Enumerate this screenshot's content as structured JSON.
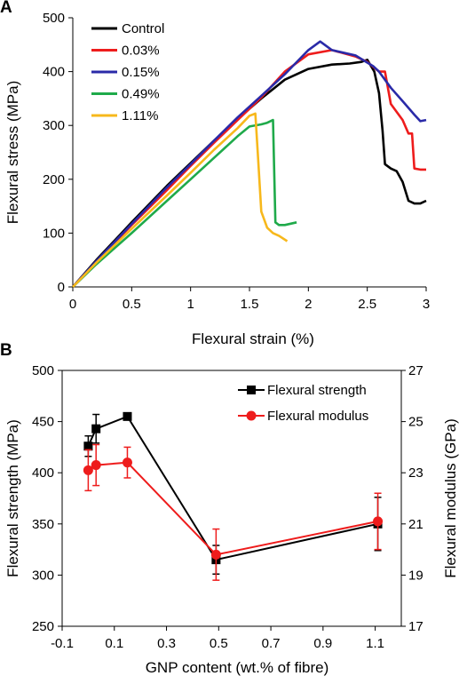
{
  "chart_data": [
    {
      "panel": "A",
      "type": "line",
      "xlabel": "Flexural strain (%)",
      "ylabel": "Flexural stress (MPa)",
      "xlim": [
        0,
        3
      ],
      "ylim": [
        0,
        500
      ],
      "xticks": [
        0,
        0.5,
        1,
        1.5,
        2,
        2.5,
        3
      ],
      "yticks": [
        0,
        100,
        200,
        300,
        400,
        500
      ],
      "xtick_labels": [
        "0",
        "0.5",
        "1",
        "1.5",
        "2",
        "2.5",
        "3"
      ],
      "ytick_labels": [
        "0",
        "100",
        "200",
        "300",
        "400",
        "500"
      ],
      "legend_position": "top-left",
      "grid": false,
      "series": [
        {
          "name": "Control",
          "color": "#000000",
          "x": [
            0,
            0.2,
            0.5,
            0.8,
            1.0,
            1.2,
            1.4,
            1.6,
            1.8,
            2.0,
            2.2,
            2.35,
            2.45,
            2.5,
            2.56,
            2.6,
            2.63,
            2.65,
            2.7,
            2.75,
            2.8,
            2.85,
            2.9,
            2.95,
            3.0
          ],
          "y": [
            0,
            50,
            120,
            188,
            230,
            272,
            312,
            350,
            385,
            405,
            413,
            415,
            418,
            422,
            400,
            360,
            290,
            228,
            220,
            215,
            195,
            160,
            155,
            155,
            160
          ]
        },
        {
          "name": "0.03%",
          "color": "#ee1c1c",
          "x": [
            0,
            0.2,
            0.5,
            0.8,
            1.0,
            1.2,
            1.4,
            1.6,
            1.8,
            2.0,
            2.2,
            2.4,
            2.5,
            2.6,
            2.65,
            2.7,
            2.75,
            2.8,
            2.85,
            2.88,
            2.9,
            2.95,
            3.0
          ],
          "y": [
            0,
            47,
            115,
            180,
            225,
            268,
            310,
            352,
            400,
            432,
            440,
            428,
            418,
            400,
            400,
            340,
            325,
            310,
            285,
            285,
            220,
            218,
            218
          ]
        },
        {
          "name": "0.15%",
          "color": "#2a2aa8",
          "x": [
            0,
            0.2,
            0.5,
            0.8,
            1.0,
            1.2,
            1.4,
            1.6,
            1.8,
            2.0,
            2.1,
            2.2,
            2.4,
            2.55,
            2.6,
            2.7,
            2.8,
            2.9,
            2.95,
            3.0
          ],
          "y": [
            0,
            48,
            117,
            185,
            228,
            272,
            315,
            355,
            395,
            440,
            456,
            440,
            430,
            410,
            400,
            370,
            345,
            320,
            308,
            310
          ]
        },
        {
          "name": "0.49%",
          "color": "#1faa4a",
          "x": [
            0,
            0.2,
            0.5,
            0.8,
            1.0,
            1.2,
            1.4,
            1.5,
            1.6,
            1.65,
            1.7,
            1.72,
            1.75,
            1.8,
            1.9
          ],
          "y": [
            0,
            42,
            100,
            160,
            200,
            240,
            280,
            298,
            302,
            305,
            310,
            120,
            115,
            115,
            120
          ]
        },
        {
          "name": "1.11%",
          "color": "#f7b81c",
          "x": [
            0,
            0.2,
            0.5,
            0.8,
            1.0,
            1.2,
            1.4,
            1.5,
            1.55,
            1.57,
            1.6,
            1.65,
            1.7,
            1.75,
            1.82
          ],
          "y": [
            0,
            45,
            108,
            170,
            212,
            255,
            295,
            318,
            322,
            250,
            140,
            110,
            100,
            95,
            85
          ]
        }
      ]
    },
    {
      "panel": "B",
      "type": "line",
      "xlabel": "GNP content (wt.% of fibre)",
      "ylabel": "Flexural strength (MPa)",
      "ylabel_right": "Flexural modulus (GPa)",
      "xlim": [
        -0.1,
        1.2
      ],
      "ylim": [
        250,
        500
      ],
      "ylim_right": [
        17,
        27
      ],
      "xticks": [
        -0.1,
        0.1,
        0.3,
        0.5,
        0.7,
        0.9,
        1.1
      ],
      "xtick_labels": [
        "-0.1",
        "0.1",
        "0.3",
        "0.5",
        "0.7",
        "0.9",
        "1.1"
      ],
      "yticks": [
        250,
        300,
        350,
        400,
        450,
        500
      ],
      "ytick_labels": [
        "250",
        "300",
        "350",
        "400",
        "450",
        "500"
      ],
      "yticks_right": [
        17,
        19,
        21,
        23,
        25,
        27
      ],
      "ytick_labels_right": [
        "17",
        "19",
        "21",
        "23",
        "25",
        "27"
      ],
      "legend_position": "top-right",
      "grid": false,
      "series": [
        {
          "name": "Flexural strength",
          "color": "#000000",
          "marker": "square",
          "axis": "left",
          "x": [
            0,
            0.03,
            0.15,
            0.49,
            1.11
          ],
          "y": [
            426,
            443,
            455,
            315,
            350
          ],
          "err": [
            10,
            14,
            0,
            14,
            26
          ]
        },
        {
          "name": "Flexural modulus",
          "color": "#ee1c1c",
          "marker": "circle",
          "axis": "right",
          "x": [
            0,
            0.03,
            0.15,
            0.49,
            1.11
          ],
          "y": [
            23.1,
            23.3,
            23.4,
            19.8,
            21.1
          ],
          "err": [
            0.8,
            0.8,
            0.6,
            1.0,
            1.1
          ]
        }
      ]
    }
  ]
}
